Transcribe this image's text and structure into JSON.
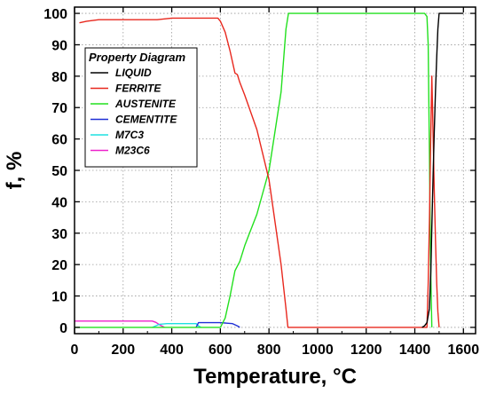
{
  "chart_data": {
    "type": "line",
    "xlabel": "Temperature, °C",
    "ylabel": "f, %",
    "xlim": [
      0,
      1650
    ],
    "ylim": [
      -2,
      102
    ],
    "xticks": [
      0,
      200,
      400,
      600,
      800,
      1000,
      1200,
      1400,
      1600
    ],
    "yticks": [
      0,
      10,
      20,
      30,
      40,
      50,
      60,
      70,
      80,
      90,
      100
    ],
    "grid": true,
    "legend": {
      "title": "Property Diagram",
      "placement": "top-left"
    },
    "series": [
      {
        "name": "LIQUID",
        "color": "#000000",
        "x": [
          1430,
          1440,
          1450,
          1460,
          1466,
          1470,
          1475,
          1480,
          1485,
          1490,
          1495,
          1500,
          1550,
          1600
        ],
        "y": [
          0,
          0.5,
          1.5,
          6,
          18,
          32,
          48,
          62,
          75,
          86,
          95,
          100,
          100,
          100
        ]
      },
      {
        "name": "FERRITE",
        "color": "#e8281e",
        "x": [
          20,
          50,
          100,
          200,
          300,
          340,
          400,
          500,
          590,
          600,
          620,
          640,
          660,
          670,
          680,
          700,
          750,
          800,
          850,
          870,
          878,
          1450,
          1455,
          1460,
          1465,
          1470,
          1475,
          1480,
          1485,
          1490,
          1495,
          1500
        ],
        "y": [
          97,
          97.5,
          98,
          98,
          98,
          98,
          98.5,
          98.5,
          98.5,
          97.5,
          94,
          88,
          81,
          80.5,
          78,
          74,
          63,
          47,
          20,
          6,
          0,
          0,
          14,
          34,
          58,
          80,
          62,
          44,
          28,
          14,
          5,
          0
        ]
      },
      {
        "name": "AUSTENITE",
        "color": "#22e01e",
        "x": [
          0,
          100,
          600,
          620,
          640,
          660,
          670,
          680,
          700,
          720,
          750,
          800,
          850,
          870,
          880,
          1440,
          1450,
          1455,
          1460,
          1465,
          1470
        ],
        "y": [
          0,
          0,
          0,
          3,
          10,
          18,
          19.5,
          21,
          26,
          30,
          36,
          50,
          75,
          95,
          100,
          100,
          99,
          90,
          55,
          20,
          0
        ]
      },
      {
        "name": "CEMENTITE",
        "color": "#1f2fd6",
        "x": [
          500,
          510,
          520,
          600,
          650,
          670,
          680
        ],
        "y": [
          0,
          1.5,
          1.5,
          1.5,
          1.2,
          0.5,
          0
        ]
      },
      {
        "name": "M7C3",
        "color": "#1ee0e0",
        "x": [
          320,
          350,
          380,
          400,
          500,
          510,
          520
        ],
        "y": [
          0,
          1,
          1.2,
          1.2,
          1.2,
          0.5,
          0
        ]
      },
      {
        "name": "M23C6",
        "color": "#ee22cc",
        "x": [
          0,
          100,
          200,
          320,
          335,
          350,
          370
        ],
        "y": [
          2,
          2,
          2,
          2,
          1.6,
          0.8,
          0
        ]
      }
    ]
  }
}
